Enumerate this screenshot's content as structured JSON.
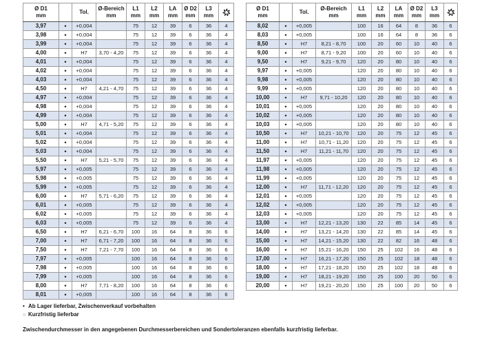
{
  "columns": [
    {
      "key": "d1",
      "label": "Ø D1",
      "unit": "mm"
    },
    {
      "key": "availability",
      "label": "",
      "unit": ""
    },
    {
      "key": "tol",
      "label": "Tol.",
      "unit": ""
    },
    {
      "key": "bereich",
      "label": "Ø-Bereich",
      "unit": "mm"
    },
    {
      "key": "l1",
      "label": "L1",
      "unit": "mm"
    },
    {
      "key": "l2",
      "label": "L2",
      "unit": "mm"
    },
    {
      "key": "la",
      "label": "LA",
      "unit": "mm"
    },
    {
      "key": "d2",
      "label": "Ø D2",
      "unit": "mm"
    },
    {
      "key": "l3",
      "label": "L3",
      "unit": "mm"
    },
    {
      "key": "flutes",
      "label": "",
      "unit": "",
      "icon": "cutting-edges-icon"
    }
  ],
  "tables": [
    {
      "rows": [
        [
          "3,97",
          "•",
          "+0,004",
          "",
          "75",
          "12",
          "39",
          "6",
          "36",
          "4"
        ],
        [
          "3,98",
          "•",
          "+0,004",
          "",
          "75",
          "12",
          "39",
          "6",
          "36",
          "4"
        ],
        [
          "3,99",
          "•",
          "+0,004",
          "",
          "75",
          "12",
          "39",
          "6",
          "36",
          "4"
        ],
        [
          "4,00",
          "•",
          "H7",
          "3,70 - 4,20",
          "75",
          "12",
          "39",
          "6",
          "36",
          "4"
        ],
        [
          "4,01",
          "•",
          "+0,004",
          "",
          "75",
          "12",
          "39",
          "6",
          "36",
          "4"
        ],
        [
          "4,02",
          "•",
          "+0,004",
          "",
          "75",
          "12",
          "39",
          "6",
          "36",
          "4"
        ],
        [
          "4,03",
          "•",
          "+0,004",
          "",
          "75",
          "12",
          "39",
          "6",
          "36",
          "4"
        ],
        [
          "4,50",
          "•",
          "H7",
          "4,21 - 4,70",
          "75",
          "12",
          "39",
          "6",
          "36",
          "4"
        ],
        [
          "4,97",
          "•",
          "+0,004",
          "",
          "75",
          "12",
          "39",
          "6",
          "36",
          "4"
        ],
        [
          "4,98",
          "•",
          "+0,004",
          "",
          "75",
          "12",
          "39",
          "6",
          "36",
          "4"
        ],
        [
          "4,99",
          "•",
          "+0,004",
          "",
          "75",
          "12",
          "39",
          "6",
          "36",
          "4"
        ],
        [
          "5,00",
          "•",
          "H7",
          "4,71 - 5,20",
          "75",
          "12",
          "39",
          "6",
          "36",
          "4"
        ],
        [
          "5,01",
          "•",
          "+0,004",
          "",
          "75",
          "12",
          "39",
          "6",
          "36",
          "4"
        ],
        [
          "5,02",
          "•",
          "+0,004",
          "",
          "75",
          "12",
          "39",
          "6",
          "36",
          "4"
        ],
        [
          "5,03",
          "•",
          "+0,004",
          "",
          "75",
          "12",
          "39",
          "6",
          "36",
          "4"
        ],
        [
          "5,50",
          "•",
          "H7",
          "5,21 - 5,70",
          "75",
          "12",
          "39",
          "6",
          "36",
          "4"
        ],
        [
          "5,97",
          "•",
          "+0,005",
          "",
          "75",
          "12",
          "39",
          "6",
          "36",
          "4"
        ],
        [
          "5,98",
          "•",
          "+0,005",
          "",
          "75",
          "12",
          "39",
          "6",
          "36",
          "4"
        ],
        [
          "5,99",
          "•",
          "+0,005",
          "",
          "75",
          "12",
          "39",
          "6",
          "36",
          "4"
        ],
        [
          "6,00",
          "•",
          "H7",
          "5,71 - 6,20",
          "75",
          "12",
          "39",
          "6",
          "36",
          "4"
        ],
        [
          "6,01",
          "•",
          "+0,005",
          "",
          "75",
          "12",
          "39",
          "6",
          "36",
          "4"
        ],
        [
          "6,02",
          "•",
          "+0,005",
          "",
          "75",
          "12",
          "39",
          "6",
          "36",
          "4"
        ],
        [
          "6,03",
          "•",
          "+0,005",
          "",
          "75",
          "12",
          "39",
          "6",
          "36",
          "4"
        ],
        [
          "6,50",
          "•",
          "H7",
          "6,21 - 6,70",
          "100",
          "16",
          "64",
          "8",
          "36",
          "6"
        ],
        [
          "7,00",
          "•",
          "H7",
          "6,71 - 7,20",
          "100",
          "16",
          "64",
          "8",
          "36",
          "6"
        ],
        [
          "7,50",
          "•",
          "H7",
          "7,21 - 7,70",
          "100",
          "16",
          "64",
          "8",
          "36",
          "6"
        ],
        [
          "7,97",
          "•",
          "+0,005",
          "",
          "100",
          "16",
          "64",
          "8",
          "36",
          "6"
        ],
        [
          "7,98",
          "•",
          "+0,005",
          "",
          "100",
          "16",
          "64",
          "8",
          "36",
          "6"
        ],
        [
          "7,99",
          "•",
          "+0,005",
          "",
          "100",
          "16",
          "64",
          "8",
          "36",
          "6"
        ],
        [
          "8,00",
          "•",
          "H7",
          "7,71 - 8,20",
          "100",
          "16",
          "64",
          "8",
          "36",
          "6"
        ],
        [
          "8,01",
          "•",
          "+0,005",
          "",
          "100",
          "16",
          "64",
          "8",
          "36",
          "6"
        ]
      ]
    },
    {
      "rows": [
        [
          "8,02",
          "•",
          "+0,005",
          "",
          "100",
          "16",
          "64",
          "8",
          "36",
          "6"
        ],
        [
          "8,03",
          "•",
          "+0,005",
          "",
          "100",
          "16",
          "64",
          "8",
          "36",
          "6"
        ],
        [
          "8,50",
          "•",
          "H7",
          "8,21 - 8,70",
          "100",
          "20",
          "60",
          "10",
          "40",
          "6"
        ],
        [
          "9,00",
          "•",
          "H7",
          "8,71 - 9,20",
          "100",
          "20",
          "60",
          "10",
          "40",
          "6"
        ],
        [
          "9,50",
          "•",
          "H7",
          "9,21 - 9,70",
          "120",
          "20",
          "80",
          "10",
          "40",
          "6"
        ],
        [
          "9,97",
          "•",
          "+0,005",
          "",
          "120",
          "20",
          "80",
          "10",
          "40",
          "6"
        ],
        [
          "9,98",
          "•",
          "+0,005",
          "",
          "120",
          "20",
          "80",
          "10",
          "40",
          "6"
        ],
        [
          "9,99",
          "•",
          "+0,005",
          "",
          "120",
          "20",
          "80",
          "10",
          "40",
          "6"
        ],
        [
          "10,00",
          "•",
          "H7",
          "9,71 - 10,20",
          "120",
          "20",
          "80",
          "10",
          "40",
          "6"
        ],
        [
          "10,01",
          "•",
          "+0,005",
          "",
          "120",
          "20",
          "80",
          "10",
          "40",
          "6"
        ],
        [
          "10,02",
          "•",
          "+0,005",
          "",
          "120",
          "20",
          "80",
          "10",
          "40",
          "6"
        ],
        [
          "10,03",
          "•",
          "+0,005",
          "",
          "120",
          "20",
          "80",
          "10",
          "40",
          "6"
        ],
        [
          "10,50",
          "•",
          "H7",
          "10,21 - 10,70",
          "120",
          "20",
          "75",
          "12",
          "45",
          "6"
        ],
        [
          "11,00",
          "•",
          "H7",
          "10,71 - 11,20",
          "120",
          "20",
          "75",
          "12",
          "45",
          "6"
        ],
        [
          "11,50",
          "•",
          "H7",
          "11,21 - 11,70",
          "120",
          "20",
          "75",
          "12",
          "45",
          "6"
        ],
        [
          "11,97",
          "•",
          "+0,005",
          "",
          "120",
          "20",
          "75",
          "12",
          "45",
          "6"
        ],
        [
          "11,98",
          "•",
          "+0,005",
          "",
          "120",
          "20",
          "75",
          "12",
          "45",
          "6"
        ],
        [
          "11,99",
          "•",
          "+0,005",
          "",
          "120",
          "20",
          "75",
          "12",
          "45",
          "6"
        ],
        [
          "12,00",
          "•",
          "H7",
          "11,71 - 12,20",
          "120",
          "20",
          "75",
          "12",
          "45",
          "6"
        ],
        [
          "12,01",
          "•",
          "+0,005",
          "",
          "120",
          "20",
          "75",
          "12",
          "45",
          "6"
        ],
        [
          "12,02",
          "•",
          "+0,005",
          "",
          "120",
          "20",
          "75",
          "12",
          "45",
          "6"
        ],
        [
          "12,03",
          "•",
          "+0,005",
          "",
          "120",
          "20",
          "75",
          "12",
          "45",
          "6"
        ],
        [
          "13,00",
          "•",
          "H7",
          "12,21 - 13,20",
          "130",
          "22",
          "85",
          "14",
          "45",
          "6"
        ],
        [
          "14,00",
          "•",
          "H7",
          "13,21 - 14,20",
          "130",
          "22",
          "85",
          "14",
          "45",
          "6"
        ],
        [
          "15,00",
          "•",
          "H7",
          "14,21 - 15,20",
          "130",
          "22",
          "82",
          "16",
          "48",
          "6"
        ],
        [
          "16,00",
          "•",
          "H7",
          "15,21 - 16,20",
          "150",
          "25",
          "102",
          "16",
          "48",
          "6"
        ],
        [
          "17,00",
          "•",
          "H7",
          "16,21 - 17,20",
          "150",
          "25",
          "102",
          "18",
          "48",
          "6"
        ],
        [
          "18,00",
          "•",
          "H7",
          "17,21 - 18,20",
          "150",
          "25",
          "102",
          "18",
          "48",
          "6"
        ],
        [
          "19,00",
          "•",
          "H7",
          "18,21 - 19,20",
          "150",
          "25",
          "100",
          "20",
          "50",
          "6"
        ],
        [
          "20,00",
          "•",
          "H7",
          "19,21 - 20,20",
          "150",
          "25",
          "100",
          "20",
          "50",
          "6"
        ]
      ]
    }
  ],
  "legend": {
    "items": [
      {
        "symbol": "•",
        "text": "Ab Lager lieferbar, Zwischenverkauf vorbehalten"
      },
      {
        "symbol": "○",
        "text": "Kurzfristig lieferbar"
      }
    ]
  },
  "footnote": "Zwischendurchmesser in den angegebenen Durchmesserbereichen und Sondertoleranzen ebenfalls kurzfristig lieferbar.",
  "colors": {
    "stripe": "#dce4f1",
    "grid": "#9b9b9b",
    "frame": "#4d4d4d",
    "text": "#1a1a1a",
    "open-dot": "#5f7dab"
  }
}
